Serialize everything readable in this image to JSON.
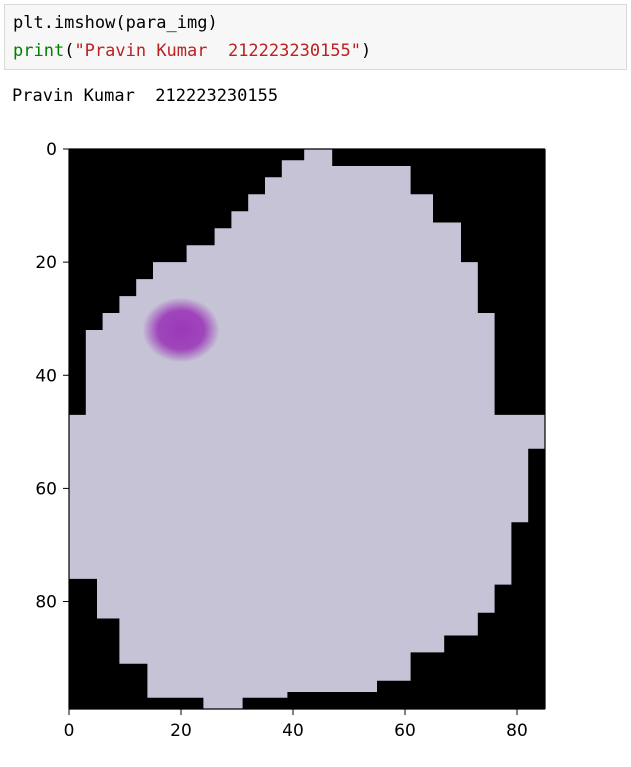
{
  "cell": {
    "input": {
      "line1": "plt.imshow(para_img)",
      "line2_fn": "print",
      "line2_open": "(",
      "line2_string": "\"Pravin Kumar  212223230155\"",
      "line2_close": ")"
    },
    "output_text": "Pravin Kumar  212223230155"
  },
  "chart_data": {
    "type": "heatmap",
    "title": "",
    "xlabel": "",
    "ylabel": "",
    "xlim": [
      0,
      85
    ],
    "ylim": [
      99,
      0
    ],
    "x_ticks": [
      0,
      20,
      40,
      60,
      80
    ],
    "y_ticks": [
      0,
      20,
      40,
      60,
      80
    ],
    "x_tick_labels": [
      "0",
      "20",
      "40",
      "60",
      "80"
    ],
    "y_tick_labels": [
      "0",
      "20",
      "40",
      "60",
      "80"
    ],
    "grid": false,
    "image": {
      "description": "cropped cell image",
      "background_color": "#000000",
      "cell_color": "#c6c3d6",
      "stain_color": "#9b38b8",
      "cell_outline": [
        [
          42,
          0
        ],
        [
          47,
          0
        ],
        [
          47,
          3
        ],
        [
          61,
          3
        ],
        [
          61,
          8
        ],
        [
          65,
          8
        ],
        [
          65,
          13
        ],
        [
          70,
          13
        ],
        [
          70,
          20
        ],
        [
          73,
          20
        ],
        [
          73,
          29
        ],
        [
          76,
          29
        ],
        [
          76,
          47
        ],
        [
          85,
          47
        ],
        [
          85,
          53
        ],
        [
          82,
          53
        ],
        [
          82,
          66
        ],
        [
          79,
          66
        ],
        [
          79,
          77
        ],
        [
          76,
          77
        ],
        [
          76,
          82
        ],
        [
          73,
          82
        ],
        [
          73,
          86
        ],
        [
          67,
          86
        ],
        [
          67,
          89
        ],
        [
          61,
          89
        ],
        [
          61,
          94
        ],
        [
          55,
          94
        ],
        [
          55,
          96
        ],
        [
          39,
          96
        ],
        [
          39,
          97
        ],
        [
          31,
          97
        ],
        [
          31,
          99
        ],
        [
          24,
          99
        ],
        [
          24,
          97
        ],
        [
          14,
          97
        ],
        [
          14,
          91
        ],
        [
          9,
          91
        ],
        [
          9,
          83
        ],
        [
          5,
          83
        ],
        [
          5,
          76
        ],
        [
          0,
          76
        ],
        [
          0,
          47
        ],
        [
          3,
          47
        ],
        [
          3,
          32
        ],
        [
          6,
          32
        ],
        [
          6,
          29
        ],
        [
          9,
          29
        ],
        [
          9,
          26
        ],
        [
          12,
          26
        ],
        [
          12,
          23
        ],
        [
          15,
          23
        ],
        [
          15,
          20
        ],
        [
          21,
          20
        ],
        [
          21,
          17
        ],
        [
          26,
          17
        ],
        [
          26,
          14
        ],
        [
          29,
          14
        ],
        [
          29,
          11
        ],
        [
          32,
          11
        ],
        [
          32,
          8
        ],
        [
          35,
          8
        ],
        [
          35,
          5
        ],
        [
          38,
          5
        ],
        [
          38,
          2
        ],
        [
          42,
          2
        ]
      ],
      "stain_center": [
        20,
        32
      ],
      "stain_radius": [
        6,
        5
      ]
    }
  }
}
